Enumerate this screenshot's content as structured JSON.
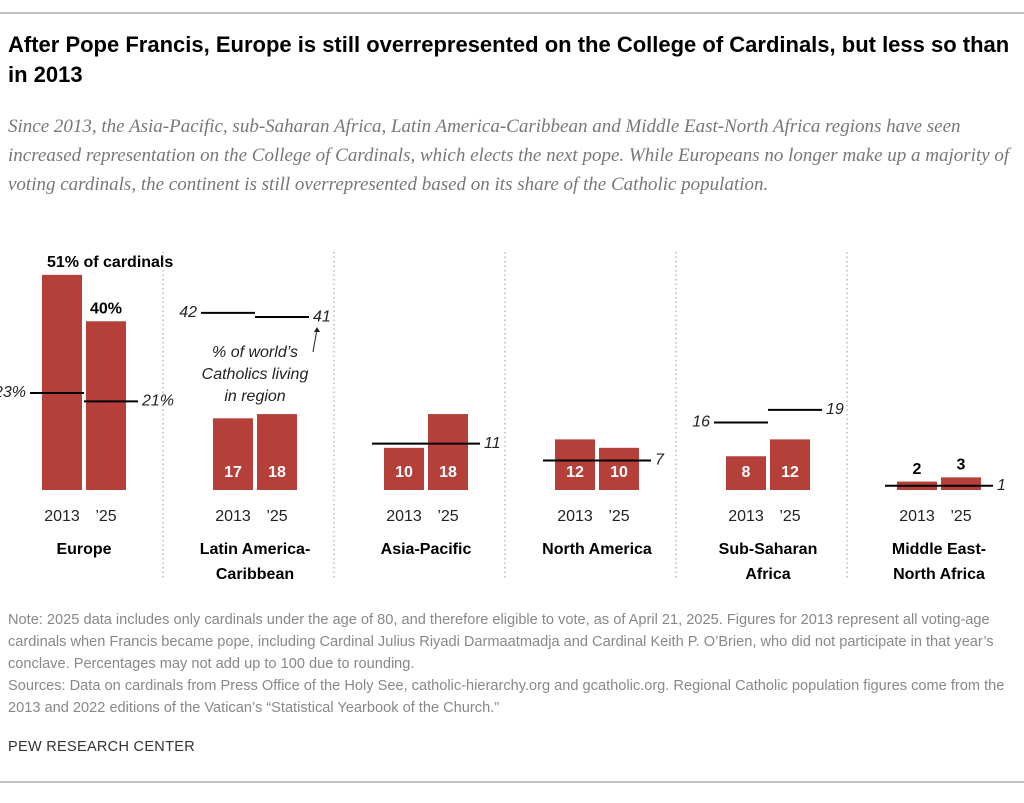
{
  "title": "After Pope Francis, Europe is still overrepresented on the College of Cardinals, but less so than in 2013",
  "subtitle": "Since 2013, the Asia-Pacific, sub-Saharan Africa, Latin America-Caribbean and Middle East-North Africa regions have seen increased representation on the College of Cardinals, which elects the next pope. While Europeans no longer make up a majority of voting cardinals, the continent is still overrepresented based on its share of the Catholic population.",
  "chart_data": [
    {
      "type": "bar",
      "title": [
        "Europe"
      ],
      "categories": [
        "2013",
        "’25"
      ],
      "values": [
        51,
        40
      ],
      "value_labels": [
        "51% of cardinals",
        "40%"
      ],
      "label_position": "above",
      "color": "#b5403a",
      "ylim": [
        0,
        55
      ],
      "reference_values": [
        23,
        21
      ],
      "reference_labels": [
        "23%",
        "21%"
      ]
    },
    {
      "type": "bar",
      "title": [
        "Latin America-",
        "Caribbean"
      ],
      "categories": [
        "2013",
        "’25"
      ],
      "values": [
        17,
        18
      ],
      "label_position": "inside",
      "color": "#b5403a",
      "ylim": [
        0,
        55
      ],
      "reference_values": [
        42,
        41
      ],
      "reference_labels": [
        "42",
        "41"
      ],
      "annotation": [
        "% of world’s",
        "Catholics living",
        "in region"
      ]
    },
    {
      "type": "bar",
      "title": [
        "Asia-Pacific"
      ],
      "categories": [
        "2013",
        "’25"
      ],
      "values": [
        10,
        18
      ],
      "label_position": "inside",
      "color": "#b5403a",
      "ylim": [
        0,
        55
      ],
      "reference_values": [
        11,
        11
      ],
      "reference_labels": [
        null,
        "11"
      ]
    },
    {
      "type": "bar",
      "title": [
        "North America"
      ],
      "categories": [
        "2013",
        "’25"
      ],
      "values": [
        12,
        10
      ],
      "label_position": "inside",
      "color": "#b5403a",
      "ylim": [
        0,
        55
      ],
      "reference_values": [
        7,
        7
      ],
      "reference_labels": [
        null,
        "7"
      ]
    },
    {
      "type": "bar",
      "title": [
        "Sub-Saharan",
        "Africa"
      ],
      "categories": [
        "2013",
        "’25"
      ],
      "values": [
        8,
        12
      ],
      "label_position": "inside",
      "color": "#b5403a",
      "ylim": [
        0,
        55
      ],
      "reference_values": [
        16,
        19
      ],
      "reference_labels": [
        "16",
        "19"
      ]
    },
    {
      "type": "bar",
      "title": [
        "Middle East-",
        "North Africa"
      ],
      "categories": [
        "2013",
        "’25"
      ],
      "values": [
        2,
        3
      ],
      "label_position": "above",
      "color": "#b5403a",
      "ylim": [
        0,
        55
      ],
      "reference_values": [
        1,
        1
      ],
      "reference_labels": [
        null,
        "1"
      ]
    }
  ],
  "note": "Note: 2025 data includes only cardinals under the age of 80, and therefore eligible to vote, as of April 21, 2025. Figures for 2013 represent all voting-age cardinals when Francis became pope, including Cardinal Julius Riyadi Darmaatmadja and Cardinal Keith P. O’Brien, who did not participate in that year’s conclave. Percentages may not add up to 100 due to rounding.",
  "source": "Sources: Data on cardinals from Press Office of the Holy See, catholic-hierarchy.org and gcatholic.org. Regional Catholic population figures come from the 2013 and 2022 editions of the Vatican’s “Statistical Yearbook of the Church.”",
  "credit": "PEW RESEARCH CENTER"
}
